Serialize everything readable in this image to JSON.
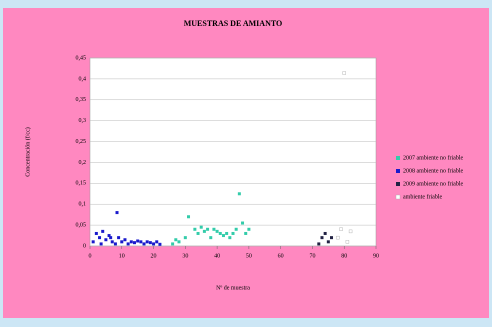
{
  "chart_data": {
    "type": "scatter",
    "title": "MUESTRAS DE AMIANTO",
    "xlabel": "Nº de muestra",
    "ylabel": "Concentración (f/cc)",
    "xlim": [
      0,
      90
    ],
    "xticks": [
      0,
      10,
      20,
      30,
      40,
      50,
      60,
      70,
      80,
      90
    ],
    "ylim": [
      0,
      0.45
    ],
    "yticks": [
      0,
      {
        "value": 0.05,
        "label": "0,05"
      },
      {
        "value": 0.1,
        "label": "0,1"
      },
      {
        "value": 0.15,
        "label": "0,15"
      },
      {
        "value": 0.2,
        "label": "0,2"
      },
      {
        "value": 0.25,
        "label": "0,25"
      },
      {
        "value": 0.3,
        "label": "0,3"
      },
      {
        "value": 0.35,
        "label": "0,35"
      },
      {
        "value": 0.4,
        "label": "0,4"
      },
      {
        "value": 0.45,
        "label": "0,45"
      }
    ],
    "grid": true,
    "legend": "right",
    "series": [
      {
        "name": "2007 ambiente no friable",
        "color": "#33ccaa",
        "x": [
          26,
          28,
          31,
          33,
          34,
          35,
          36,
          37,
          38,
          39,
          40,
          41,
          42,
          43,
          44,
          45,
          46,
          47,
          48,
          49,
          50,
          27,
          30
        ],
        "y": [
          0.005,
          0.01,
          0.07,
          0.04,
          0.03,
          0.045,
          0.035,
          0.04,
          0.02,
          0.04,
          0.035,
          0.03,
          0.025,
          0.03,
          0.02,
          0.03,
          0.04,
          0.125,
          0.055,
          0.03,
          0.04,
          0.015,
          0.02
        ]
      },
      {
        "name": "2008 ambiente no friable",
        "color": "#1a1acc",
        "x": [
          1,
          2,
          3,
          4,
          5,
          6,
          7,
          8,
          8.5,
          9,
          10,
          11,
          12,
          13,
          14,
          15,
          16,
          17,
          18,
          19,
          20,
          21,
          22,
          3.5,
          6.5
        ],
        "y": [
          0.01,
          0.03,
          0.02,
          0.035,
          0.015,
          0.025,
          0.01,
          0.005,
          0.08,
          0.02,
          0.01,
          0.015,
          0.005,
          0.01,
          0.008,
          0.012,
          0.01,
          0.005,
          0.01,
          0.008,
          0.005,
          0.01,
          0.004,
          0.005,
          0.02
        ]
      },
      {
        "name": "2009 ambiente no friable",
        "color": "#222244",
        "x": [
          72,
          73,
          74,
          75,
          76
        ],
        "y": [
          0.005,
          0.02,
          0.03,
          0.01,
          0.02
        ]
      },
      {
        "name": "ambiente friable",
        "color": "#ffffff",
        "x": [
          78,
          79,
          80,
          81,
          82
        ],
        "y": [
          0.02,
          0.04,
          0.414,
          0.01,
          0.035
        ]
      }
    ]
  }
}
